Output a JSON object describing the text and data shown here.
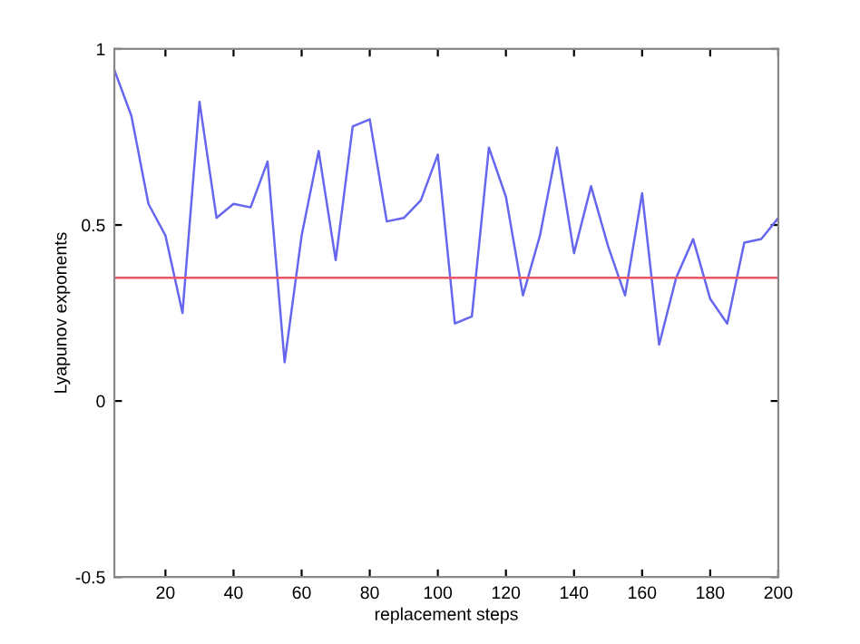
{
  "chart_data": {
    "type": "line",
    "xlabel": "replacement steps",
    "ylabel": "Lyapunov exponents",
    "x": [
      5,
      10,
      15,
      20,
      25,
      30,
      35,
      40,
      45,
      50,
      55,
      60,
      65,
      70,
      75,
      80,
      85,
      90,
      95,
      100,
      105,
      110,
      115,
      120,
      125,
      130,
      135,
      140,
      145,
      150,
      155,
      160,
      165,
      170,
      175,
      180,
      185,
      190,
      195,
      200
    ],
    "series": [
      {
        "color": "#6666ee",
        "values": [
          0.94,
          0.81,
          0.56,
          0.47,
          0.25,
          0.85,
          0.52,
          0.56,
          0.55,
          0.68,
          0.11,
          0.47,
          0.71,
          0.4,
          0.78,
          0.8,
          0.51,
          0.52,
          0.57,
          0.7,
          0.22,
          0.24,
          0.72,
          0.58,
          0.3,
          0.47,
          0.72,
          0.42,
          0.61,
          0.44,
          0.3,
          0.59,
          0.16,
          0.35,
          0.46,
          0.29,
          0.22,
          0.45,
          0.46,
          0.52
        ]
      }
    ],
    "ref_lines": [
      {
        "axis": "y",
        "value": 0.35,
        "color": "#ee5566"
      }
    ],
    "xlim": [
      5,
      200
    ],
    "xticks": [
      20,
      40,
      60,
      80,
      100,
      120,
      140,
      160,
      180,
      200
    ],
    "ylim": [
      -0.5,
      1
    ],
    "yticks": [
      -0.5,
      0,
      0.5,
      1
    ],
    "grid": false,
    "legend": false,
    "marker": "none",
    "line_style": "solid"
  }
}
